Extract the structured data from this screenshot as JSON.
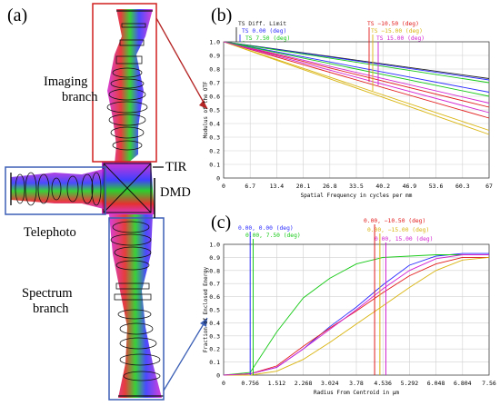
{
  "figure": {
    "panel_a": "(a)",
    "panel_b": "(b)",
    "panel_c": "(c)",
    "labels": {
      "imaging_branch": [
        "Imaging",
        "branch"
      ],
      "tir": "TIR",
      "dmd": "DMD",
      "telephoto": "Telephoto",
      "spectrum_branch": [
        "Spectrum",
        "branch"
      ]
    }
  },
  "colors": {
    "red_box": "#d11f1f",
    "blue_box": "#3b5fb5",
    "ray_magenta": "#d11fd1",
    "ray_green": "#15c915",
    "ray_blue": "#2a2aff",
    "ray_red": "#e21a1a",
    "ray_yellow": "#d9b40f",
    "lens_black": "#111111"
  },
  "chart_data": [
    {
      "type": "line",
      "panel": "(b)",
      "ylabel": "Modulus of the OTF",
      "xlabel": "Spatial Frequency in cycles per mm",
      "xlim": [
        0,
        67
      ],
      "ylim": [
        0,
        1.0
      ],
      "xticks": [
        "0",
        "6.7",
        "13.4",
        "20.1",
        "26.8",
        "33.5",
        "40.2",
        "46.9",
        "53.6",
        "60.3",
        "67"
      ],
      "yticks": [
        "0",
        "0.1",
        "0.2",
        "0.3",
        "0.4",
        "0.5",
        "0.6",
        "0.7",
        "0.8",
        "0.9",
        "1.0"
      ],
      "legend": [
        "TS Diff. Limit",
        "TS 0.00 (deg)",
        "TS 7.50 (deg)",
        "TS −10.50 (deg)",
        "TS −15.00 (deg)",
        "TS 15.00 (deg)"
      ],
      "grid": true,
      "series": [
        {
          "color": "#222222",
          "x": [
            0,
            67
          ],
          "y": [
            1.0,
            0.73
          ]
        },
        {
          "color": "#2a2aff",
          "x": [
            0,
            67
          ],
          "y": [
            1.0,
            0.72
          ]
        },
        {
          "color": "#15c915",
          "x": [
            0,
            67
          ],
          "y": [
            1.0,
            0.7
          ]
        },
        {
          "color": "#e21a1a",
          "x": [
            0,
            67
          ],
          "y": [
            1.0,
            0.52
          ]
        },
        {
          "color": "#d9b40f",
          "x": [
            0,
            67
          ],
          "y": [
            1.0,
            0.32
          ]
        },
        {
          "color": "#d11fd1",
          "x": [
            0,
            67
          ],
          "y": [
            1.0,
            0.55
          ]
        },
        {
          "color": "#2a2aff",
          "x": [
            0,
            67
          ],
          "y": [
            1.0,
            0.63
          ]
        },
        {
          "color": "#15c915",
          "x": [
            0,
            67
          ],
          "y": [
            1.0,
            0.6
          ]
        },
        {
          "color": "#e21a1a",
          "x": [
            0,
            67
          ],
          "y": [
            1.0,
            0.44
          ]
        },
        {
          "color": "#d9b40f",
          "x": [
            0,
            67
          ],
          "y": [
            1.0,
            0.35
          ]
        },
        {
          "color": "#d11fd1",
          "x": [
            0,
            67
          ],
          "y": [
            1.0,
            0.48
          ]
        }
      ]
    },
    {
      "type": "line",
      "panel": "(c)",
      "ylabel": "Fraction of Enclosed Energy",
      "xlabel": "Radius From Centroid in µm",
      "xlim": [
        0,
        7.56
      ],
      "ylim": [
        0,
        1.0
      ],
      "xticks": [
        "0",
        "0.756",
        "1.512",
        "2.268",
        "3.024",
        "3.78",
        "4.536",
        "5.292",
        "6.048",
        "6.804",
        "7.56"
      ],
      "yticks": [
        "0",
        "0.1",
        "0.2",
        "0.3",
        "0.4",
        "0.5",
        "0.6",
        "0.7",
        "0.8",
        "0.9",
        "1.0"
      ],
      "legend": [
        "0.00, 0.00 (deg)",
        "0.00, 7.50 (deg)",
        "0.00, −10.50 (deg)",
        "0.00, −15.00 (deg)",
        "0.00, 15.00 (deg)"
      ],
      "grid": true,
      "series": [
        {
          "color": "#2a2aff",
          "x": [
            0,
            0.756,
            1.512,
            2.268,
            3.024,
            3.78,
            4.536,
            5.292,
            6.048,
            6.804,
            7.56
          ],
          "y": [
            0,
            0.01,
            0.06,
            0.2,
            0.37,
            0.52,
            0.69,
            0.84,
            0.91,
            0.93,
            0.93
          ]
        },
        {
          "color": "#15c915",
          "x": [
            0,
            0.756,
            1.512,
            2.268,
            3.024,
            3.78,
            4.536,
            5.292,
            6.048,
            6.804,
            7.56
          ],
          "y": [
            0,
            0.02,
            0.33,
            0.59,
            0.74,
            0.85,
            0.9,
            0.91,
            0.92,
            0.92,
            0.92
          ]
        },
        {
          "color": "#e21a1a",
          "x": [
            0,
            0.756,
            1.512,
            2.268,
            3.024,
            3.78,
            4.536,
            5.292,
            6.048,
            6.804,
            7.56
          ],
          "y": [
            0,
            0.01,
            0.07,
            0.22,
            0.36,
            0.49,
            0.63,
            0.76,
            0.85,
            0.9,
            0.9
          ]
        },
        {
          "color": "#d9b40f",
          "x": [
            0,
            0.756,
            1.512,
            2.268,
            3.024,
            3.78,
            4.536,
            5.292,
            6.048,
            6.804,
            7.56
          ],
          "y": [
            0,
            0.0,
            0.03,
            0.12,
            0.25,
            0.39,
            0.53,
            0.67,
            0.8,
            0.88,
            0.9
          ]
        },
        {
          "color": "#d11fd1",
          "x": [
            0,
            0.756,
            1.512,
            2.268,
            3.024,
            3.78,
            4.536,
            5.292,
            6.048,
            6.804,
            7.56
          ],
          "y": [
            0,
            0.01,
            0.06,
            0.2,
            0.35,
            0.5,
            0.66,
            0.8,
            0.89,
            0.92,
            0.92
          ]
        }
      ],
      "markers": [
        {
          "color": "#2a2aff",
          "x": 0.756
        },
        {
          "color": "#15c915",
          "x": 0.84
        },
        {
          "color": "#e21a1a",
          "x": 4.3
        },
        {
          "color": "#d9b40f",
          "x": 4.45
        },
        {
          "color": "#d11fd1",
          "x": 4.62
        }
      ]
    }
  ]
}
